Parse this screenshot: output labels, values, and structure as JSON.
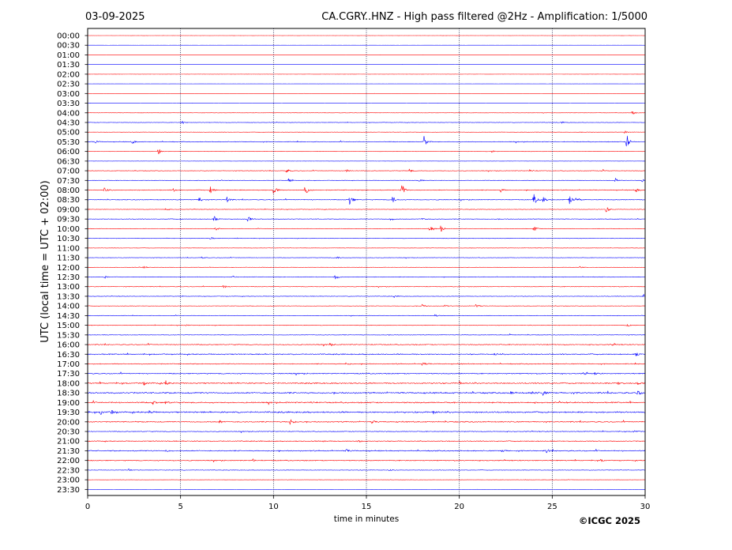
{
  "header": {
    "date": "03-09-2025",
    "title": "CA.CGRY..HNZ - High pass filtered @2Hz - Amplification: 1/5000"
  },
  "footer": {
    "copyright": "©ICGC 2025"
  },
  "chart_data": {
    "type": "line",
    "title": "CA.CGRY..HNZ - High pass filtered @2Hz - Amplification: 1/5000",
    "xlabel": "time in minutes",
    "ylabel": "UTC (local time = UTC + 02:00)",
    "xlim": [
      0,
      30
    ],
    "x_ticks": [
      "0",
      "5",
      "10",
      "15",
      "20",
      "25",
      "30"
    ],
    "x_tick_values": [
      0,
      5,
      10,
      15,
      20,
      25,
      30
    ],
    "vertical_gridlines": [
      5,
      10,
      15,
      20,
      25
    ],
    "grid": "dotted vertical",
    "rows": [
      "00:00",
      "00:30",
      "01:00",
      "01:30",
      "02:00",
      "02:30",
      "03:00",
      "03:30",
      "04:00",
      "04:30",
      "05:00",
      "05:30",
      "06:00",
      "06:30",
      "07:00",
      "07:30",
      "08:00",
      "08:30",
      "09:00",
      "09:30",
      "10:00",
      "10:30",
      "11:00",
      "11:30",
      "12:00",
      "12:30",
      "13:00",
      "13:30",
      "14:00",
      "14:30",
      "15:00",
      "15:30",
      "16:00",
      "16:30",
      "17:00",
      "17:30",
      "18:00",
      "18:30",
      "19:00",
      "19:30",
      "20:00",
      "20:30",
      "21:00",
      "21:30",
      "22:00",
      "22:30",
      "23:00",
      "23:30"
    ],
    "series_colors": [
      "#ff0000",
      "#0000ff"
    ],
    "noise": [
      0.03,
      0.03,
      0.03,
      0.03,
      0.03,
      0.03,
      0.05,
      0.05,
      0.15,
      0.25,
      0.2,
      0.4,
      0.15,
      0.1,
      0.3,
      0.25,
      0.45,
      0.4,
      0.3,
      0.35,
      0.25,
      0.25,
      0.2,
      0.25,
      0.2,
      0.35,
      0.3,
      0.3,
      0.25,
      0.25,
      0.3,
      0.3,
      0.5,
      0.6,
      0.5,
      0.55,
      0.7,
      0.8,
      0.7,
      0.8,
      0.6,
      0.4,
      0.5,
      0.6,
      0.5,
      0.3,
      0.15,
      0.05
    ],
    "events": [
      {
        "row": "04:00",
        "t": 29.3,
        "a": 3
      },
      {
        "row": "04:30",
        "t": 5.1,
        "a": 2
      },
      {
        "row": "04:30",
        "t": 25.5,
        "a": 1.2
      },
      {
        "row": "05:00",
        "t": 28.9,
        "a": 2
      },
      {
        "row": "05:30",
        "t": 2.4,
        "a": 2.5
      },
      {
        "row": "05:30",
        "t": 18.1,
        "a": 7
      },
      {
        "row": "05:30",
        "t": 29.0,
        "a": 10
      },
      {
        "row": "05:30",
        "t": 0.4,
        "a": 2
      },
      {
        "row": "06:00",
        "t": 3.8,
        "a": 5
      },
      {
        "row": "06:00",
        "t": 21.7,
        "a": 3
      },
      {
        "row": "07:00",
        "t": 10.7,
        "a": 3
      },
      {
        "row": "07:00",
        "t": 13.9,
        "a": 2.5
      },
      {
        "row": "07:00",
        "t": 17.3,
        "a": 3
      },
      {
        "row": "07:00",
        "t": 23.8,
        "a": 2.5
      },
      {
        "row": "07:00",
        "t": 27.7,
        "a": 2.5
      },
      {
        "row": "07:30",
        "t": 10.8,
        "a": 3
      },
      {
        "row": "07:30",
        "t": 17.8,
        "a": 3
      },
      {
        "row": "07:30",
        "t": 28.4,
        "a": 3
      },
      {
        "row": "07:30",
        "t": 29.8,
        "a": 2.5
      },
      {
        "row": "08:00",
        "t": 0.9,
        "a": 3
      },
      {
        "row": "08:00",
        "t": 4.6,
        "a": 2
      },
      {
        "row": "08:00",
        "t": 6.6,
        "a": 5
      },
      {
        "row": "08:00",
        "t": 10.0,
        "a": 7
      },
      {
        "row": "08:00",
        "t": 11.7,
        "a": 7
      },
      {
        "row": "08:00",
        "t": 16.9,
        "a": 9
      },
      {
        "row": "08:00",
        "t": 22.2,
        "a": 3
      },
      {
        "row": "08:00",
        "t": 29.5,
        "a": 2.5
      },
      {
        "row": "08:30",
        "t": 6.0,
        "a": 4
      },
      {
        "row": "08:30",
        "t": 7.5,
        "a": 4
      },
      {
        "row": "08:30",
        "t": 14.1,
        "a": 9
      },
      {
        "row": "08:30",
        "t": 16.4,
        "a": 5
      },
      {
        "row": "08:30",
        "t": 24.0,
        "a": 8
      },
      {
        "row": "08:30",
        "t": 24.5,
        "a": 5
      },
      {
        "row": "08:30",
        "t": 25.9,
        "a": 7
      },
      {
        "row": "08:30",
        "t": 26.3,
        "a": 6
      },
      {
        "row": "09:00",
        "t": 27.9,
        "a": 4
      },
      {
        "row": "09:00",
        "t": 4.2,
        "a": 1.5
      },
      {
        "row": "09:30",
        "t": 6.8,
        "a": 4
      },
      {
        "row": "09:30",
        "t": 8.6,
        "a": 5
      },
      {
        "row": "09:30",
        "t": 16.3,
        "a": 2.5
      },
      {
        "row": "09:30",
        "t": 18.0,
        "a": 2
      },
      {
        "row": "10:00",
        "t": 18.4,
        "a": 4
      },
      {
        "row": "10:00",
        "t": 19.0,
        "a": 4
      },
      {
        "row": "10:00",
        "t": 24.0,
        "a": 4
      },
      {
        "row": "10:00",
        "t": 6.9,
        "a": 2
      },
      {
        "row": "10:30",
        "t": 6.6,
        "a": 2
      },
      {
        "row": "11:30",
        "t": 13.4,
        "a": 2
      },
      {
        "row": "11:30",
        "t": 6.1,
        "a": 1.5
      },
      {
        "row": "12:00",
        "t": 3.0,
        "a": 2
      },
      {
        "row": "12:00",
        "t": 26.5,
        "a": 1.5
      },
      {
        "row": "12:30",
        "t": 13.3,
        "a": 5
      },
      {
        "row": "12:30",
        "t": 7.8,
        "a": 2
      },
      {
        "row": "12:30",
        "t": 0.9,
        "a": 2
      },
      {
        "row": "13:00",
        "t": 7.3,
        "a": 3
      },
      {
        "row": "13:30",
        "t": 29.9,
        "a": 3
      },
      {
        "row": "13:30",
        "t": 16.5,
        "a": 1.5
      },
      {
        "row": "14:00",
        "t": 18.0,
        "a": 2.5
      },
      {
        "row": "14:00",
        "t": 20.9,
        "a": 3
      },
      {
        "row": "14:00",
        "t": 19.2,
        "a": 2
      },
      {
        "row": "14:30",
        "t": 18.7,
        "a": 2
      },
      {
        "row": "15:00",
        "t": 5.3,
        "a": 1.5
      },
      {
        "row": "15:00",
        "t": 29.0,
        "a": 2
      },
      {
        "row": "15:30",
        "t": 22.7,
        "a": 1.5
      },
      {
        "row": "16:00",
        "t": 13.0,
        "a": 2
      },
      {
        "row": "16:00",
        "t": 28.2,
        "a": 1.5
      },
      {
        "row": "16:30",
        "t": 29.5,
        "a": 2.5
      },
      {
        "row": "16:30",
        "t": 21.9,
        "a": 1.5
      },
      {
        "row": "17:00",
        "t": 18.0,
        "a": 3
      },
      {
        "row": "17:00",
        "t": 13.9,
        "a": 2
      },
      {
        "row": "17:30",
        "t": 26.7,
        "a": 2
      },
      {
        "row": "17:30",
        "t": 27.3,
        "a": 1.5
      },
      {
        "row": "18:00",
        "t": 3.0,
        "a": 2.5
      },
      {
        "row": "18:00",
        "t": 4.2,
        "a": 3
      },
      {
        "row": "18:00",
        "t": 20.0,
        "a": 2.5
      },
      {
        "row": "18:00",
        "t": 28.5,
        "a": 3
      },
      {
        "row": "18:00",
        "t": 29.6,
        "a": 2.5
      },
      {
        "row": "18:30",
        "t": 22.7,
        "a": 3
      },
      {
        "row": "18:30",
        "t": 23.9,
        "a": 3
      },
      {
        "row": "18:30",
        "t": 24.5,
        "a": 3
      },
      {
        "row": "18:30",
        "t": 29.6,
        "a": 3
      },
      {
        "row": "19:00",
        "t": 3.5,
        "a": 3
      },
      {
        "row": "19:00",
        "t": 4.2,
        "a": 2.5
      },
      {
        "row": "19:00",
        "t": 12.0,
        "a": 2
      },
      {
        "row": "19:30",
        "t": 0.7,
        "a": 3
      },
      {
        "row": "19:30",
        "t": 1.3,
        "a": 3
      },
      {
        "row": "19:30",
        "t": 18.6,
        "a": 3
      },
      {
        "row": "19:30",
        "t": 3.3,
        "a": 2
      },
      {
        "row": "20:00",
        "t": 10.9,
        "a": 5
      },
      {
        "row": "20:00",
        "t": 7.1,
        "a": 2
      },
      {
        "row": "20:00",
        "t": 15.3,
        "a": 2
      },
      {
        "row": "20:30",
        "t": 29.4,
        "a": 2
      },
      {
        "row": "21:00",
        "t": 14.5,
        "a": 3
      },
      {
        "row": "21:00",
        "t": 12.7,
        "a": 2
      },
      {
        "row": "21:30",
        "t": 4.2,
        "a": 2
      },
      {
        "row": "21:30",
        "t": 13.9,
        "a": 2
      },
      {
        "row": "21:30",
        "t": 22.3,
        "a": 2
      },
      {
        "row": "21:30",
        "t": 24.7,
        "a": 2.5
      },
      {
        "row": "22:00",
        "t": 8.9,
        "a": 2
      },
      {
        "row": "22:00",
        "t": 27.6,
        "a": 1.5
      },
      {
        "row": "22:30",
        "t": 2.2,
        "a": 1.5
      },
      {
        "row": "22:30",
        "t": 16.2,
        "a": 1.2
      }
    ]
  }
}
